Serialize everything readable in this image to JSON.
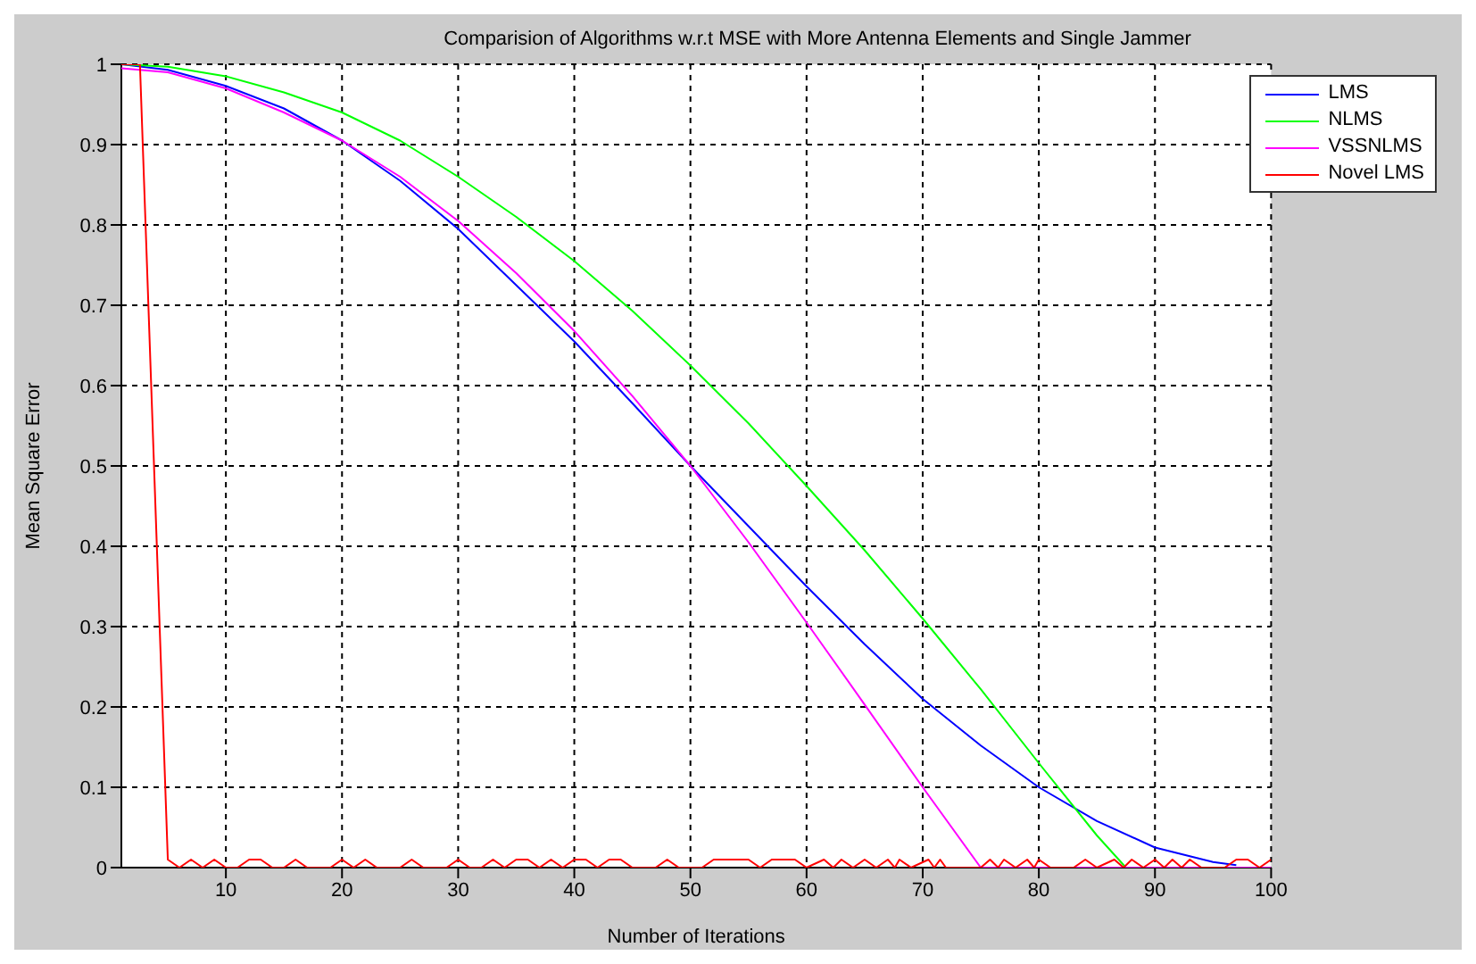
{
  "chart_data": {
    "type": "line",
    "title": "Comparision of Algorithms w.r.t MSE with More Antenna Elements and Single Jammer",
    "xlabel": "Number of Iterations",
    "ylabel": "Mean Square Error",
    "xlim": [
      1,
      100
    ],
    "xticks": [
      10,
      20,
      30,
      40,
      50,
      60,
      70,
      80,
      90,
      100
    ],
    "ylim": [
      0,
      1
    ],
    "yticks": [
      0,
      0.1,
      0.2,
      0.3,
      0.4,
      0.5,
      0.6,
      0.7,
      0.8,
      0.9,
      1
    ],
    "grid": true,
    "legend": "top right",
    "marker": "none",
    "line_style": "solid",
    "series": [
      {
        "name": "LMS",
        "color": "#0000ff",
        "x": [
          1,
          5,
          10,
          15,
          20,
          25,
          30,
          35,
          40,
          45,
          50,
          55,
          60,
          65,
          70,
          75,
          80,
          85,
          90,
          95,
          97
        ],
        "values": [
          1,
          0.993,
          0.973,
          0.945,
          0.905,
          0.855,
          0.795,
          0.725,
          0.655,
          0.578,
          0.5,
          0.425,
          0.35,
          0.278,
          0.21,
          0.152,
          0.1,
          0.058,
          0.025,
          0.007,
          0.003
        ]
      },
      {
        "name": "NLMS",
        "color": "#00ff00",
        "x": [
          1,
          5,
          10,
          15,
          20,
          25,
          30,
          35,
          40,
          45,
          50,
          55,
          60,
          65,
          70,
          75,
          80,
          85,
          87.5
        ],
        "values": [
          1,
          0.997,
          0.985,
          0.965,
          0.94,
          0.905,
          0.86,
          0.81,
          0.755,
          0.693,
          0.625,
          0.553,
          0.475,
          0.395,
          0.31,
          0.222,
          0.13,
          0.04,
          0
        ]
      },
      {
        "name": "VSSNLMS",
        "color": "#ff00ff",
        "x": [
          1,
          5,
          10,
          15,
          20,
          25,
          30,
          35,
          40,
          45,
          50,
          55,
          60,
          65,
          70,
          75,
          80,
          90,
          100
        ],
        "values": [
          0.995,
          0.99,
          0.97,
          0.94,
          0.905,
          0.86,
          0.805,
          0.74,
          0.668,
          0.587,
          0.5,
          0.405,
          0.305,
          0.203,
          0.1,
          0,
          0,
          0,
          0
        ]
      },
      {
        "name": "Novel LMS",
        "color": "#ff0000",
        "x": [
          1,
          2.6,
          5,
          6,
          7,
          8,
          9,
          10,
          11,
          12,
          13,
          14,
          15,
          16,
          17,
          19,
          20,
          21,
          22,
          23,
          25,
          26,
          27,
          29,
          30,
          31,
          32,
          33,
          34,
          35,
          36,
          37,
          38,
          39,
          40,
          41,
          42,
          43,
          44,
          45,
          47,
          48,
          49,
          51,
          52,
          55,
          56,
          57,
          59,
          60,
          61.5,
          62.3,
          63,
          64,
          65,
          66,
          67,
          67.6,
          68,
          69,
          70.5,
          71,
          71.5,
          72,
          75,
          75.8,
          76.5,
          77,
          78,
          79,
          79.6,
          80,
          81,
          83,
          84,
          85,
          86.5,
          87.3,
          88,
          89,
          90,
          90.8,
          91.5,
          92.3,
          93,
          94,
          96,
          97,
          98,
          99,
          100
        ],
        "values": [
          1,
          1,
          0.01,
          0,
          0.01,
          0,
          0.01,
          0,
          0,
          0.01,
          0.01,
          0,
          0,
          0.01,
          0,
          0,
          0.01,
          0,
          0.01,
          0,
          0,
          0.01,
          0,
          0,
          0.01,
          0,
          0,
          0.01,
          0,
          0.01,
          0.01,
          0,
          0.01,
          0,
          0.01,
          0.01,
          0,
          0.01,
          0.01,
          0,
          0,
          0.01,
          0,
          0,
          0.01,
          0.01,
          0,
          0.01,
          0.01,
          0,
          0.01,
          0,
          0.01,
          0,
          0.01,
          0,
          0.01,
          0,
          0.01,
          0,
          0.01,
          0,
          0.01,
          0,
          0,
          0.01,
          0,
          0.01,
          0,
          0.01,
          0,
          0.01,
          0,
          0,
          0.01,
          0,
          0.01,
          0,
          0.01,
          0,
          0.01,
          0,
          0.01,
          0,
          0.01,
          0,
          0,
          0.01,
          0.01,
          0,
          0.01
        ]
      }
    ]
  }
}
